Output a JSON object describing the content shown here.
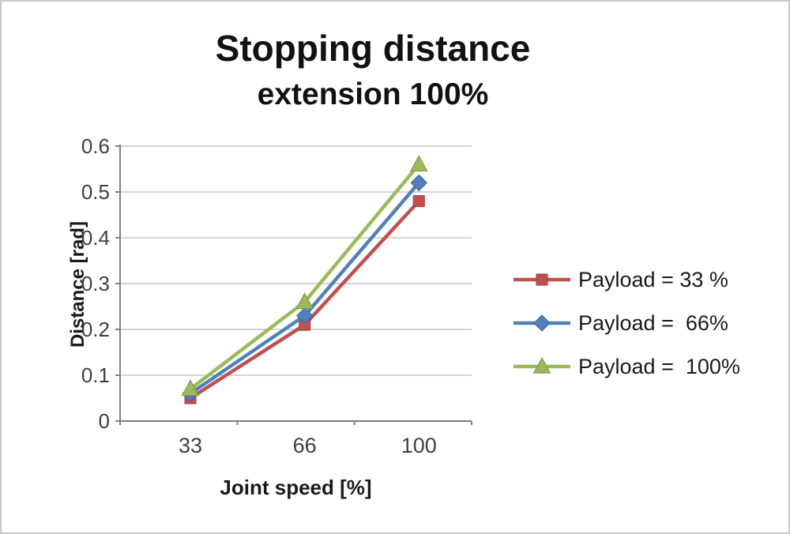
{
  "chart_data": {
    "type": "line",
    "title": "Stopping distance",
    "subtitle": "extension 100%",
    "xlabel": "Joint speed [%]",
    "ylabel": "Distance [rad]",
    "categories": [
      "33",
      "66",
      "100"
    ],
    "series": [
      {
        "name": "Payload = 33 %",
        "color": "#c0504d",
        "marker": "square",
        "values": [
          0.05,
          0.21,
          0.48
        ]
      },
      {
        "name": "Payload =  66%",
        "color": "#4f81bd",
        "marker": "diamond",
        "values": [
          0.06,
          0.23,
          0.52
        ]
      },
      {
        "name": "Payload =  100%",
        "color": "#9bbb59",
        "marker": "triangle",
        "values": [
          0.07,
          0.26,
          0.56
        ]
      }
    ],
    "ylim": [
      0,
      0.6
    ],
    "ytick_step": 0.1,
    "ytick_labels": [
      "0",
      "0.1",
      "0.2",
      "0.3",
      "0.4",
      "0.5",
      "0.6"
    ],
    "grid": true,
    "gridline_color": "#c6c6c6",
    "axis_color": "#7f7f7f",
    "tick_label_color": "#3f3f3f",
    "legend_position": "right"
  }
}
